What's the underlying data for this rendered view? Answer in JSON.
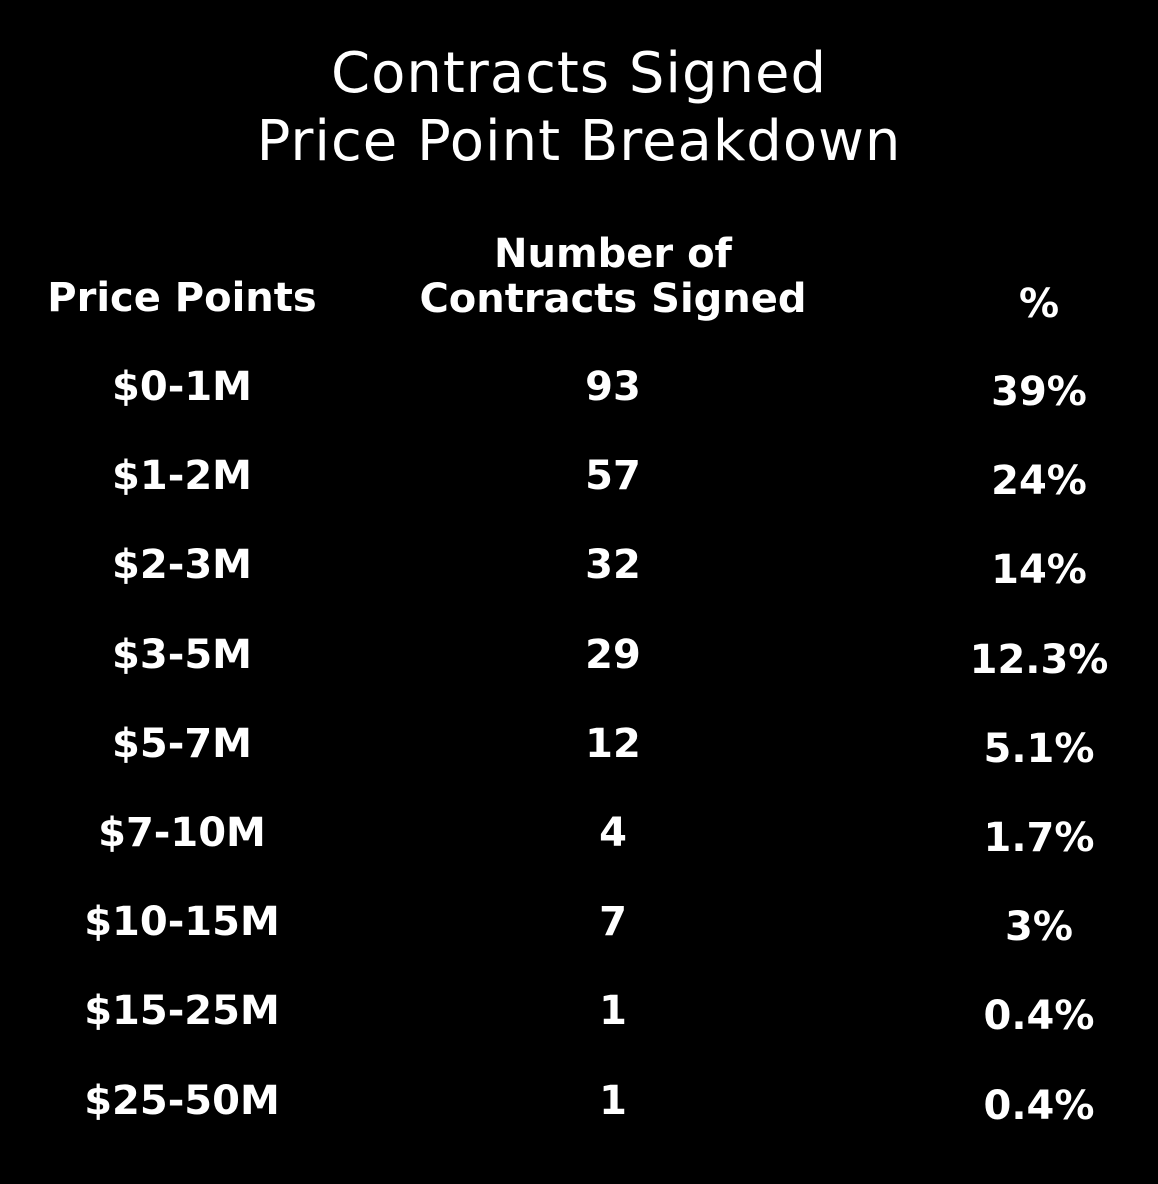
{
  "chart_data": {
    "type": "table",
    "title": "Contracts Signed",
    "subtitle": "Price Point Breakdown",
    "columns": [
      "Price Points",
      "Number of Contracts Signed",
      "%"
    ],
    "rows": [
      {
        "price": "$0-1M",
        "count": 93,
        "percent": "39%"
      },
      {
        "price": "$1-2M",
        "count": 57,
        "percent": "24%"
      },
      {
        "price": "$2-3M",
        "count": 32,
        "percent": "14%"
      },
      {
        "price": "$3-5M",
        "count": 29,
        "percent": "12.3%"
      },
      {
        "price": "$5-7M",
        "count": 12,
        "percent": "5.1%"
      },
      {
        "price": "$7-10M",
        "count": 4,
        "percent": "1.7%"
      },
      {
        "price": "$10-15M",
        "count": 7,
        "percent": "3%"
      },
      {
        "price": "$15-25M",
        "count": 1,
        "percent": "0.4%"
      },
      {
        "price": "$25-50M",
        "count": 1,
        "percent": "0.4%"
      }
    ]
  },
  "header": {
    "price_label": "Price Points",
    "count_label_line1": "Number of",
    "count_label_line2": "Contracts Signed",
    "percent_label": "%"
  },
  "colors": {
    "background": "#000000",
    "text": "#ffffff"
  }
}
